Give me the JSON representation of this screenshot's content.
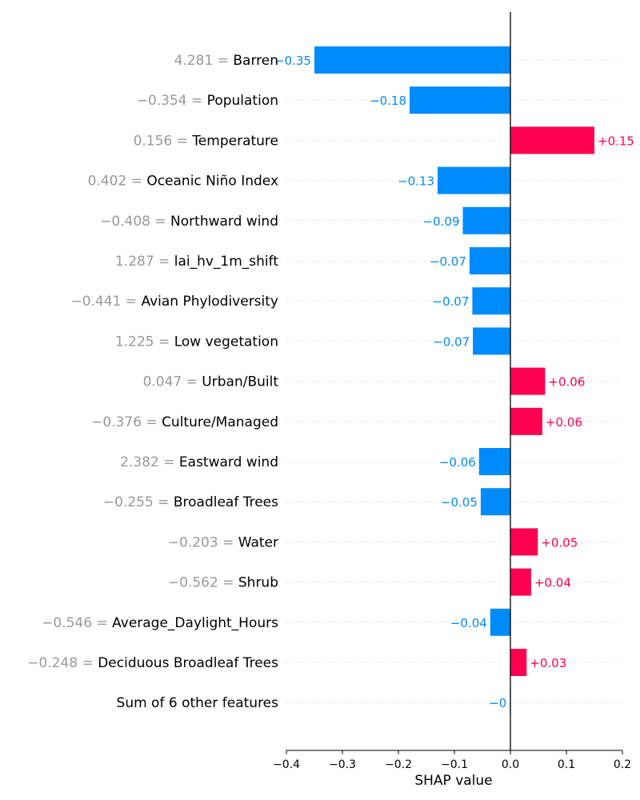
{
  "chart_data": {
    "type": "bar",
    "orientation": "horizontal",
    "xlabel": "SHAP value",
    "xlim": [
      -0.4,
      0.2
    ],
    "xticks": [
      -0.4,
      -0.3,
      -0.2,
      -0.1,
      0.0,
      0.1,
      0.2
    ],
    "xtick_labels": [
      "−0.4",
      "−0.3",
      "−0.2",
      "−0.1",
      "0.0",
      "0.1",
      "0.2"
    ],
    "grid": "horizontal dotted",
    "colors": {
      "positive": "#ff0051",
      "negative": "#008bfb",
      "feature_value": "#999999",
      "axis": "#000000"
    },
    "features": [
      {
        "value_label": "4.281 =",
        "name": "Barren",
        "shap": -0.35,
        "shap_label": "−0.35"
      },
      {
        "value_label": "−0.354 =",
        "name": "Population",
        "shap": -0.18,
        "shap_label": "−0.18"
      },
      {
        "value_label": "0.156 =",
        "name": "Temperature",
        "shap": 0.15,
        "shap_label": "+0.15"
      },
      {
        "value_label": "0.402 =",
        "name": "Oceanic Niño Index",
        "shap": -0.13,
        "shap_label": "−0.13"
      },
      {
        "value_label": "−0.408 =",
        "name": "Northward wind",
        "shap": -0.085,
        "shap_label": "−0.09"
      },
      {
        "value_label": "1.287 =",
        "name": "lai_hv_1m_shift",
        "shap": -0.073,
        "shap_label": "−0.07"
      },
      {
        "value_label": "−0.441 =",
        "name": "Avian Phylodiversity",
        "shap": -0.068,
        "shap_label": "−0.07"
      },
      {
        "value_label": "1.225 =",
        "name": "Low vegetation",
        "shap": -0.067,
        "shap_label": "−0.07"
      },
      {
        "value_label": "0.047 =",
        "name": "Urban/Built",
        "shap": 0.062,
        "shap_label": "+0.06"
      },
      {
        "value_label": "−0.376 =",
        "name": "Culture/Managed",
        "shap": 0.057,
        "shap_label": "+0.06"
      },
      {
        "value_label": "2.382 =",
        "name": "Eastward wind",
        "shap": -0.056,
        "shap_label": "−0.06"
      },
      {
        "value_label": "−0.255 =",
        "name": "Broadleaf Trees",
        "shap": -0.053,
        "shap_label": "−0.05"
      },
      {
        "value_label": "−0.203 =",
        "name": "Water",
        "shap": 0.049,
        "shap_label": "+0.05"
      },
      {
        "value_label": "−0.562 =",
        "name": "Shrub",
        "shap": 0.037,
        "shap_label": "+0.04"
      },
      {
        "value_label": "−0.546 =",
        "name": "Average_Daylight_Hours",
        "shap": -0.036,
        "shap_label": "−0.04"
      },
      {
        "value_label": "−0.248 =",
        "name": "Deciduous Broadleaf Trees",
        "shap": 0.029,
        "shap_label": "+0.03"
      },
      {
        "value_label": "",
        "name": "Sum of 6 other features",
        "shap": -0.001,
        "shap_label": "−0"
      }
    ]
  }
}
